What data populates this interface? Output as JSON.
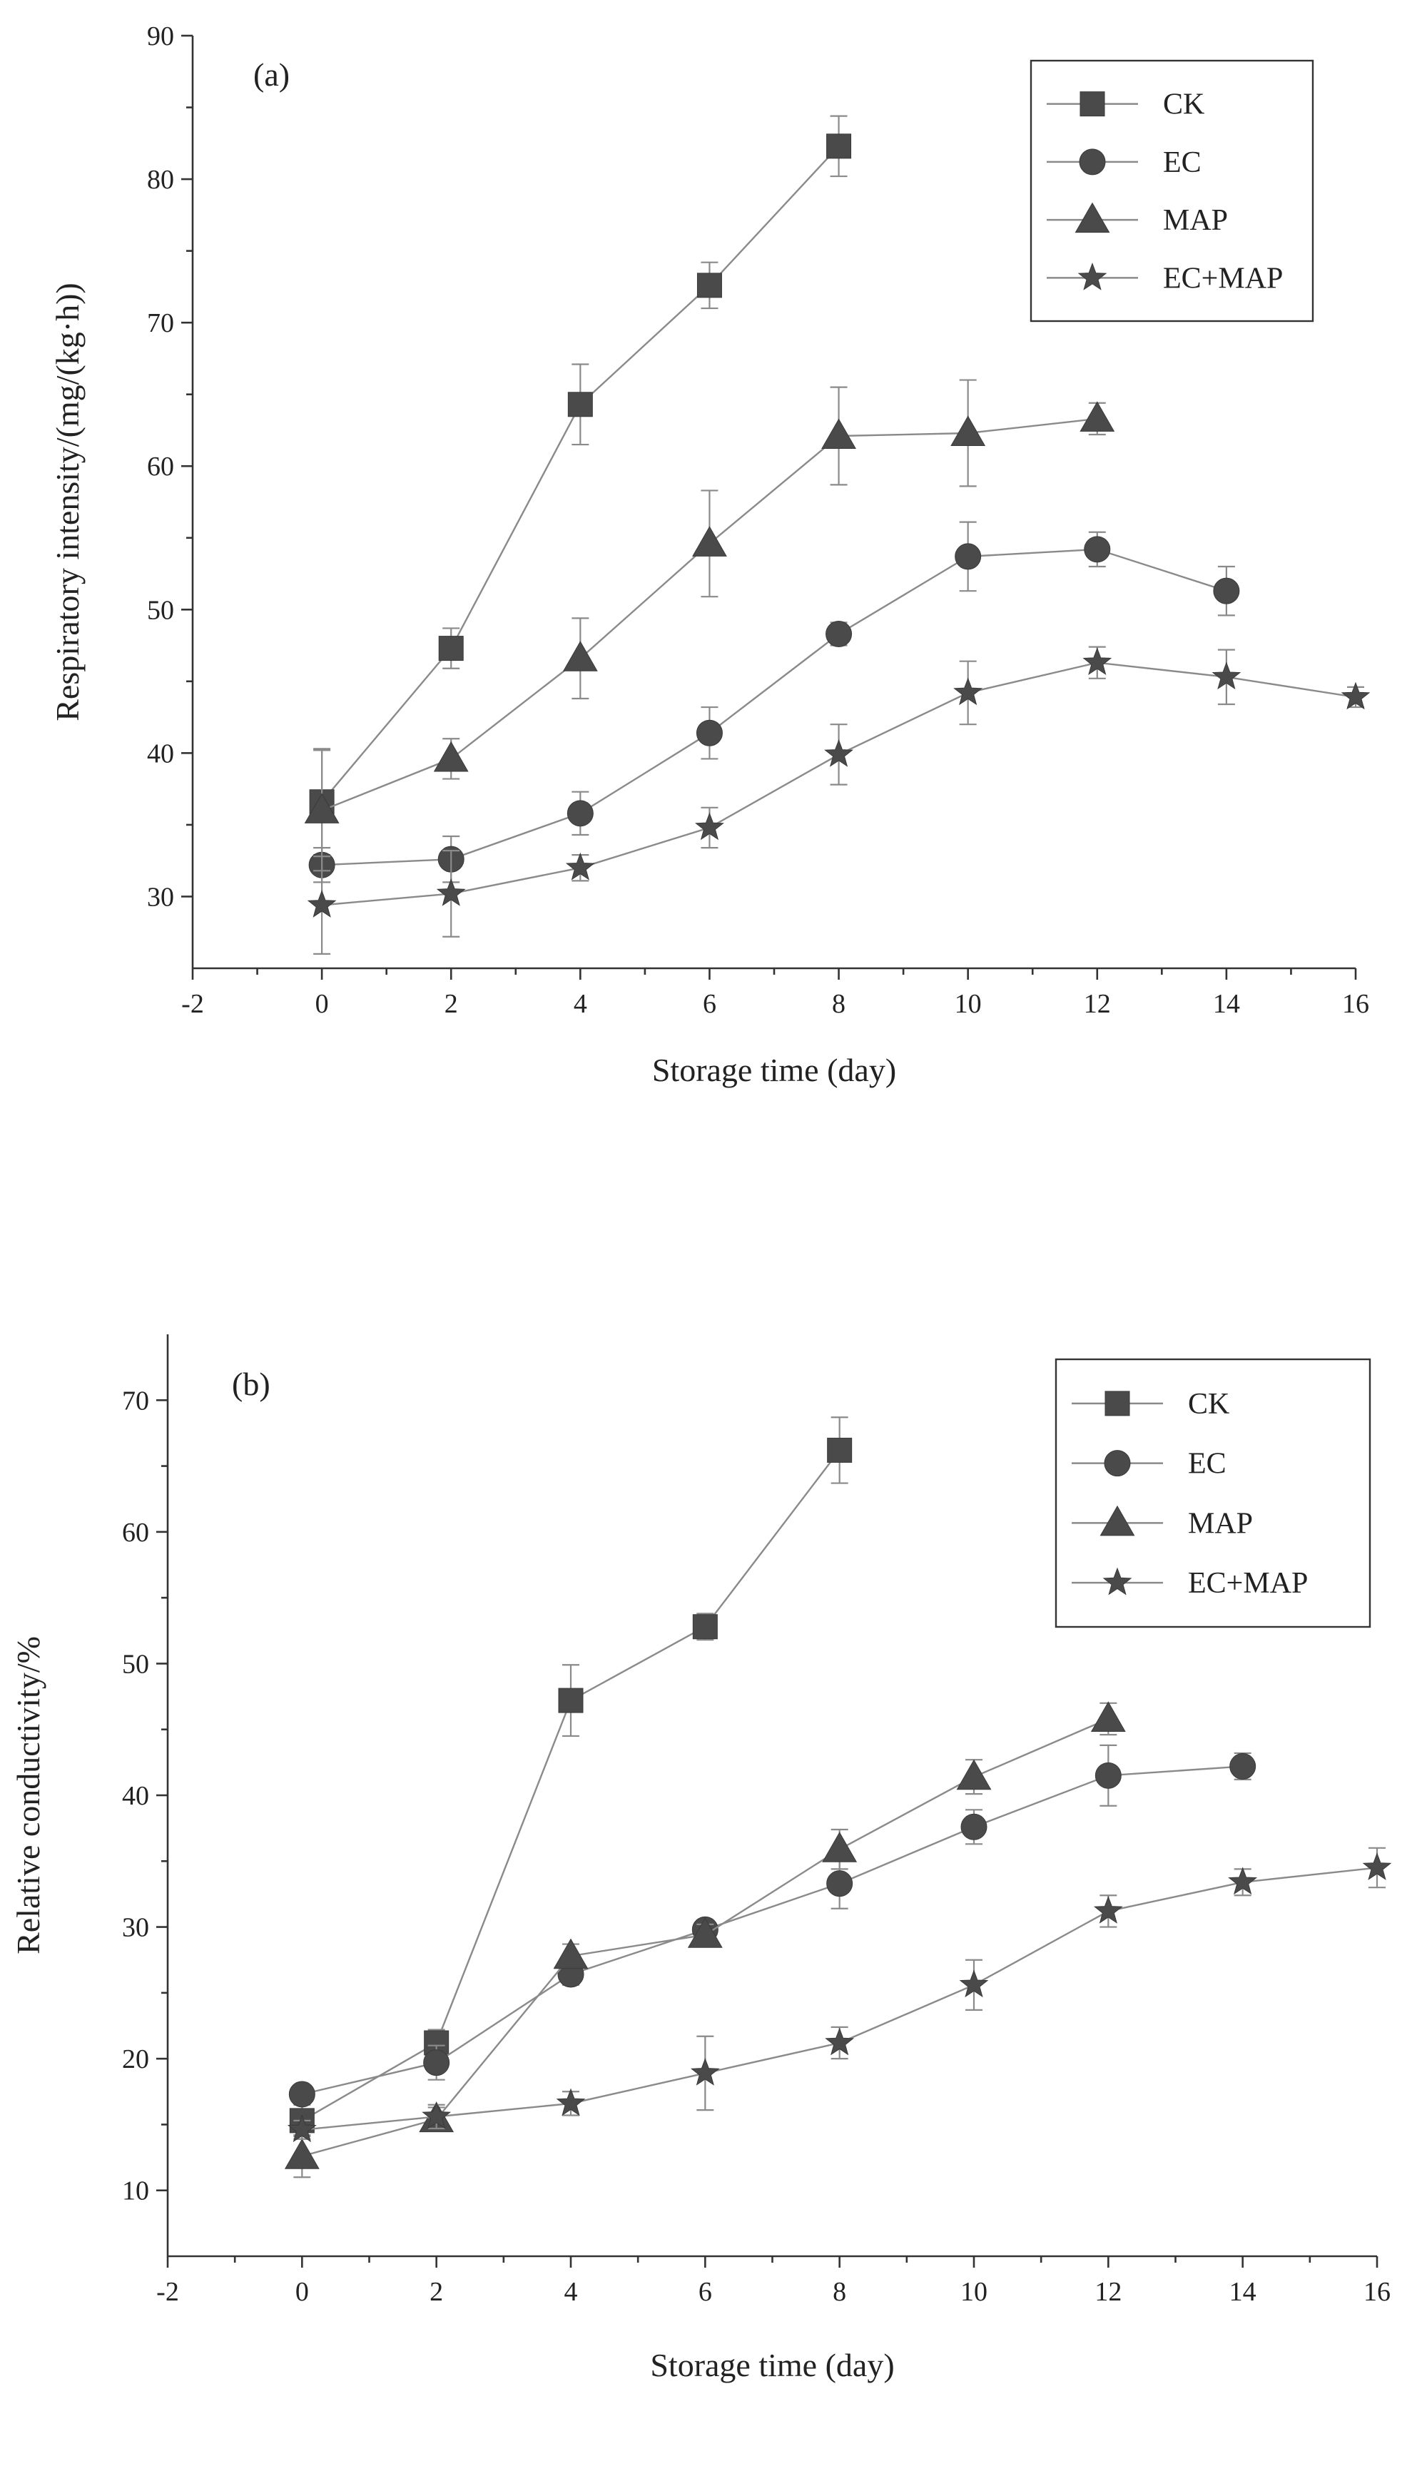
{
  "chart_data": [
    {
      "type": "line",
      "panel": "(a)",
      "title": "",
      "xlabel": "Storage time (day)",
      "ylabel": "Respiratory intensity/(mg/(kg·h))",
      "xlim": [
        -2,
        16
      ],
      "ylim": [
        25,
        90
      ],
      "xticks": [
        -2,
        0,
        2,
        4,
        6,
        8,
        10,
        12,
        14,
        16
      ],
      "yticks": [
        30,
        40,
        50,
        60,
        70,
        80,
        90
      ],
      "legend_position": "top-right",
      "series": [
        {
          "name": "CK",
          "marker": "square",
          "x": [
            0,
            2,
            4,
            6,
            8
          ],
          "values": [
            36.6,
            47.3,
            64.3,
            72.6,
            82.3
          ],
          "errors": [
            3.7,
            1.4,
            2.8,
            1.6,
            2.1
          ]
        },
        {
          "name": "EC",
          "marker": "circle",
          "x": [
            0,
            2,
            4,
            6,
            8,
            10,
            12,
            14
          ],
          "values": [
            32.2,
            32.6,
            35.8,
            41.4,
            48.3,
            53.7,
            54.2,
            51.3
          ],
          "errors": [
            1.2,
            1.6,
            1.5,
            1.8,
            0.8,
            2.4,
            1.2,
            1.7
          ]
        },
        {
          "name": "MAP",
          "marker": "triangle",
          "x": [
            0,
            2,
            4,
            6,
            8,
            10,
            12
          ],
          "values": [
            36.0,
            39.6,
            46.6,
            54.6,
            62.1,
            62.3,
            63.3
          ],
          "errors": [
            4.2,
            1.4,
            2.8,
            3.7,
            3.4,
            3.7,
            1.1
          ]
        },
        {
          "name": "EC+MAP",
          "marker": "star",
          "x": [
            0,
            2,
            4,
            6,
            8,
            10,
            12,
            14,
            16
          ],
          "values": [
            29.4,
            30.2,
            32.0,
            34.8,
            39.9,
            44.2,
            46.3,
            45.3,
            43.9
          ],
          "errors": [
            3.4,
            3.0,
            0.9,
            1.4,
            2.1,
            2.2,
            1.1,
            1.9,
            0.7
          ]
        }
      ]
    },
    {
      "type": "line",
      "panel": "(b)",
      "title": "",
      "xlabel": "Storage time (day)",
      "ylabel": "Relative conductivity/%",
      "xlim": [
        -2,
        16
      ],
      "ylim": [
        5,
        75
      ],
      "xticks": [
        -2,
        0,
        2,
        4,
        6,
        8,
        10,
        12,
        14,
        16
      ],
      "yticks": [
        10,
        20,
        30,
        40,
        50,
        60,
        70
      ],
      "legend_position": "top-right",
      "series": [
        {
          "name": "CK",
          "marker": "square",
          "x": [
            0,
            2,
            4,
            6,
            8
          ],
          "values": [
            15.3,
            21.2,
            47.2,
            52.8,
            66.2
          ],
          "errors": [
            1.2,
            1.0,
            2.7,
            1.0,
            2.5
          ]
        },
        {
          "name": "EC",
          "marker": "circle",
          "x": [
            0,
            2,
            4,
            6,
            8,
            10,
            12,
            14
          ],
          "values": [
            17.3,
            19.7,
            26.4,
            29.8,
            33.3,
            37.6,
            41.5,
            42.2
          ],
          "errors": [
            0.6,
            1.3,
            0.8,
            0.6,
            1.9,
            1.3,
            2.3,
            1.0
          ]
        },
        {
          "name": "MAP",
          "marker": "triangle",
          "x": [
            0,
            2,
            4,
            6,
            8,
            10,
            12
          ],
          "values": [
            12.6,
            15.4,
            27.8,
            29.4,
            35.9,
            41.4,
            45.8
          ],
          "errors": [
            1.6,
            0.9,
            0.9,
            0.8,
            1.5,
            1.3,
            1.2
          ]
        },
        {
          "name": "EC+MAP",
          "marker": "star",
          "x": [
            0,
            2,
            4,
            6,
            8,
            10,
            12,
            14,
            16
          ],
          "values": [
            14.6,
            15.6,
            16.6,
            18.9,
            21.2,
            25.6,
            31.2,
            33.4,
            34.5
          ],
          "errors": [
            0.7,
            0.9,
            0.9,
            2.8,
            1.2,
            1.9,
            1.2,
            1.0,
            1.5
          ]
        }
      ]
    }
  ]
}
